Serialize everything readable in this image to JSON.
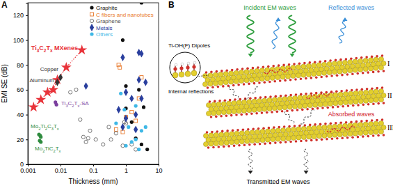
{
  "chart_data": {
    "type": "scatter",
    "title": "A",
    "x_label": "Thickness (mm)",
    "y_label": "EMI SE (dB)",
    "log": "x",
    "xlim": [
      0.001,
      10
    ],
    "xticks": [
      0.001,
      0.01,
      0.1,
      1,
      10
    ],
    "ylim": [
      0,
      130
    ],
    "yticks": [
      0,
      20,
      40,
      60,
      80,
      100,
      120
    ],
    "legend": "upper right",
    "series": [
      {
        "name": "Graphite",
        "color": "#111111",
        "marker": "circle",
        "x": [
          0.8,
          3,
          1,
          2.5,
          3,
          4.5,
          2,
          1.5,
          3.5,
          1
        ],
        "values": [
          100,
          130,
          63,
          60,
          16,
          12,
          21,
          34,
          46,
          45
        ]
      },
      {
        "name": "C fibers and nanotubes",
        "color": "#e8782a",
        "marker": "square-open",
        "x": [
          0.65,
          0.5,
          0.8,
          1,
          1.5,
          2.5,
          3,
          0.6,
          2
        ],
        "values": [
          78,
          28,
          26,
          38,
          42,
          53,
          70,
          80,
          35
        ]
      },
      {
        "name": "Graphene",
        "color": "#555555",
        "marker": "circle-open",
        "x": [
          0.02,
          0.03,
          0.04,
          0.05,
          0.06,
          0.08,
          0.07,
          0.12,
          0.3,
          0.5,
          0.8,
          1,
          0.35,
          2,
          1.5,
          0.9,
          0.2
        ],
        "values": [
          58,
          60,
          36,
          22,
          18,
          27,
          21,
          20,
          30,
          25,
          15,
          33,
          20,
          12,
          16,
          34,
          16
        ]
      },
      {
        "name": "Metals",
        "color": "#2a3f9e",
        "marker": "diamond",
        "x": [
          0.06,
          0.8,
          2.5,
          3,
          1,
          1.5,
          2,
          1,
          0.8,
          3,
          0.6,
          2.5,
          4,
          2
        ],
        "values": [
          63,
          86,
          90,
          89,
          58,
          53,
          40,
          37,
          30,
          53,
          44,
          68,
          66,
          28
        ]
      },
      {
        "name": "Others",
        "color": "#3fb8e6",
        "marker": "circle",
        "x": [
          0.7,
          1.2,
          1,
          2,
          2.5,
          3,
          0.9,
          2,
          0.5,
          1.5,
          4
        ],
        "values": [
          57,
          30,
          15,
          20,
          12,
          27,
          44,
          47,
          33,
          18,
          30
        ]
      }
    ],
    "annotated_series": [
      {
        "name": "Ti3C2Tx MXenes",
        "color": "#e8333a",
        "marker": "star",
        "line_style": "dotted",
        "x": [
          0.0015,
          0.0025,
          0.004,
          0.006,
          0.008,
          0.015,
          0.045
        ],
        "values": [
          46,
          52,
          58,
          60,
          68,
          78,
          92
        ]
      },
      {
        "name": "Copper",
        "color": "#333333",
        "marker": "diamond",
        "x": [
          0.01
        ],
        "values": [
          70
        ]
      },
      {
        "name": "Aluminum",
        "color": "#333333",
        "marker": "diamond",
        "x": [
          0.008
        ],
        "values": [
          66
        ]
      },
      {
        "name": "Ti3C2Tx-SA",
        "color": "#7b3f9e",
        "marker": "circle",
        "x": [
          0.007,
          0.0075
        ],
        "values": [
          50,
          48
        ]
      },
      {
        "name": "Mo2Ti2C3Tx",
        "color": "#2e8b3e",
        "marker": "circle",
        "x": [
          0.0022,
          0.0024,
          0.0025
        ],
        "values": [
          24,
          23,
          22
        ]
      },
      {
        "name": "Mo2TiC2Tx",
        "color": "#2e8b3e",
        "marker": "circle",
        "x": [
          0.0023,
          0.0025
        ],
        "values": [
          19,
          18
        ]
      }
    ]
  },
  "diagram": {
    "panel_label": "B",
    "dipole_label": "Ti-OH(F) Dipoles",
    "incident": "Incident EM waves",
    "reflected": "Reflected waves",
    "internal": "Internal reflections",
    "absorbed": "Absorbed waves",
    "transmitted": "Transmitted EM waves",
    "layers": [
      "I",
      "II",
      "III"
    ]
  }
}
